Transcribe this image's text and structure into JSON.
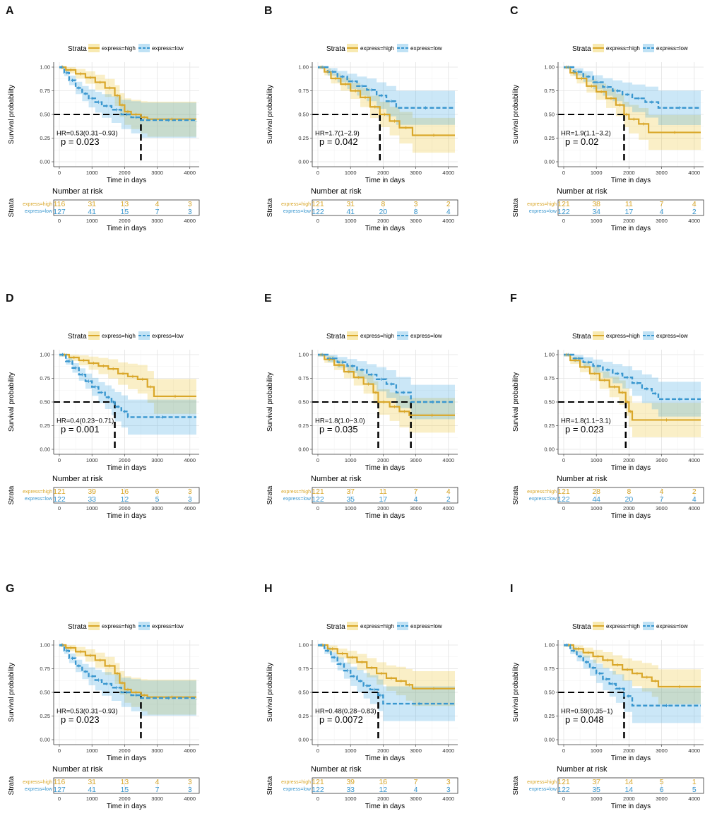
{
  "colors": {
    "high": "#E7B800",
    "low": "#2E9FDF",
    "high_line": "#D9A72A",
    "low_line": "#3A97CF"
  },
  "common": {
    "legend_title": "Strata",
    "legend_high": "express=high",
    "legend_low": "express=low",
    "ylabel": "Survival probability",
    "xlabel": "Time in days",
    "risk_title": "Number at risk",
    "risk_ylabel": "Strata",
    "risk_label_high": "express=high",
    "risk_label_low": "express=low",
    "y_ticks": [
      "0.00",
      "0.25",
      "0.50",
      "0.75",
      "1.00"
    ],
    "x_ticks": [
      "0",
      "1000",
      "2000",
      "3000",
      "4000"
    ]
  },
  "chart_data": [
    {
      "type": "line",
      "panel": "A",
      "xlim": [
        0,
        4200
      ],
      "ylim": [
        0,
        1
      ],
      "hr": "HR=0.53(0.31−0.93)",
      "p": "p = 0.023",
      "median_lines": [
        2500
      ],
      "high": {
        "t": [
          0,
          200,
          500,
          800,
          1100,
          1400,
          1700,
          1850,
          2000,
          2200,
          2500,
          2700,
          4200
        ],
        "s": [
          1,
          0.97,
          0.93,
          0.89,
          0.84,
          0.78,
          0.7,
          0.6,
          0.53,
          0.5,
          0.47,
          0.45,
          0.45
        ]
      },
      "low": {
        "t": [
          0,
          150,
          300,
          500,
          700,
          900,
          1100,
          1300,
          1600,
          1900,
          2200,
          2500,
          4200
        ],
        "s": [
          1,
          0.94,
          0.86,
          0.78,
          0.72,
          0.67,
          0.63,
          0.59,
          0.55,
          0.5,
          0.47,
          0.44,
          0.43
        ]
      },
      "risk_high": [
        "116",
        "31",
        "13",
        "4",
        "3"
      ],
      "risk_low": [
        "127",
        "41",
        "15",
        "7",
        "3"
      ]
    },
    {
      "type": "line",
      "panel": "B",
      "xlim": [
        0,
        4200
      ],
      "ylim": [
        0,
        1
      ],
      "hr": "HR=1.7(1−2.9)",
      "p": "p = 0.042",
      "median_lines": [
        1900
      ],
      "high": {
        "t": [
          0,
          200,
          400,
          700,
          1000,
          1300,
          1600,
          1900,
          2200,
          2500,
          2900,
          4200
        ],
        "s": [
          1,
          0.95,
          0.88,
          0.82,
          0.75,
          0.68,
          0.58,
          0.5,
          0.43,
          0.36,
          0.28,
          0.28
        ]
      },
      "low": {
        "t": [
          0,
          300,
          600,
          900,
          1200,
          1500,
          1800,
          2100,
          2400,
          4200
        ],
        "s": [
          1,
          0.95,
          0.9,
          0.85,
          0.8,
          0.76,
          0.7,
          0.64,
          0.57,
          0.57
        ]
      },
      "risk_high": [
        "121",
        "31",
        "8",
        "3",
        "2"
      ],
      "risk_low": [
        "122",
        "41",
        "20",
        "8",
        "4"
      ]
    },
    {
      "type": "line",
      "panel": "C",
      "xlim": [
        0,
        4200
      ],
      "ylim": [
        0,
        1
      ],
      "hr": "HR=1.9(1.1−3.2)",
      "p": "p = 0.02",
      "median_lines": [
        1850
      ],
      "high": {
        "t": [
          0,
          200,
          400,
          700,
          1000,
          1300,
          1600,
          1850,
          2000,
          2300,
          2600,
          4200
        ],
        "s": [
          1,
          0.94,
          0.88,
          0.8,
          0.74,
          0.67,
          0.6,
          0.5,
          0.45,
          0.4,
          0.31,
          0.31
        ]
      },
      "low": {
        "t": [
          0,
          300,
          600,
          900,
          1200,
          1500,
          1800,
          2100,
          2500,
          2900,
          4200
        ],
        "s": [
          1,
          0.95,
          0.9,
          0.84,
          0.79,
          0.75,
          0.71,
          0.67,
          0.63,
          0.57,
          0.57
        ]
      },
      "risk_high": [
        "121",
        "38",
        "11",
        "7",
        "4"
      ],
      "risk_low": [
        "122",
        "34",
        "17",
        "4",
        "2"
      ]
    },
    {
      "type": "line",
      "panel": "D",
      "xlim": [
        0,
        4200
      ],
      "ylim": [
        0,
        1
      ],
      "hr": "HR=0.4(0.23−0.71)",
      "p": "p = 0.001",
      "median_lines": [
        1700
      ],
      "high": {
        "t": [
          0,
          300,
          600,
          900,
          1200,
          1500,
          1800,
          2100,
          2400,
          2700,
          2900,
          4200
        ],
        "s": [
          1,
          0.97,
          0.94,
          0.91,
          0.88,
          0.85,
          0.8,
          0.77,
          0.74,
          0.66,
          0.56,
          0.56
        ]
      },
      "low": {
        "t": [
          0,
          200,
          400,
          600,
          800,
          1000,
          1200,
          1400,
          1600,
          1700,
          1900,
          2100,
          4200
        ],
        "s": [
          1,
          0.93,
          0.86,
          0.79,
          0.72,
          0.66,
          0.6,
          0.55,
          0.5,
          0.45,
          0.4,
          0.34,
          0.34
        ]
      },
      "risk_high": [
        "121",
        "39",
        "16",
        "6",
        "3"
      ],
      "risk_low": [
        "122",
        "33",
        "12",
        "5",
        "3"
      ]
    },
    {
      "type": "line",
      "panel": "E",
      "xlim": [
        0,
        4200
      ],
      "ylim": [
        0,
        1
      ],
      "hr": "HR=1.8(1.0−3.0)",
      "p": "p = 0.035",
      "median_lines": [
        1850,
        2850
      ],
      "high": {
        "t": [
          0,
          200,
          500,
          800,
          1100,
          1400,
          1700,
          1850,
          2200,
          2500,
          2800,
          4200
        ],
        "s": [
          1,
          0.95,
          0.89,
          0.82,
          0.76,
          0.69,
          0.6,
          0.5,
          0.45,
          0.4,
          0.36,
          0.36
        ]
      },
      "low": {
        "t": [
          0,
          300,
          600,
          900,
          1200,
          1500,
          1800,
          2100,
          2400,
          2850,
          4200
        ],
        "s": [
          1,
          0.96,
          0.92,
          0.88,
          0.84,
          0.79,
          0.74,
          0.69,
          0.6,
          0.5,
          0.5
        ]
      },
      "risk_high": [
        "121",
        "37",
        "11",
        "7",
        "4"
      ],
      "risk_low": [
        "122",
        "35",
        "17",
        "4",
        "2"
      ]
    },
    {
      "type": "line",
      "panel": "F",
      "xlim": [
        0,
        4200
      ],
      "ylim": [
        0,
        1
      ],
      "hr": "HR=1.8(1.1−3.1)",
      "p": "p = 0.023",
      "median_lines": [
        1900
      ],
      "high": {
        "t": [
          0,
          200,
          500,
          800,
          1100,
          1400,
          1700,
          1900,
          2000,
          2100,
          4200
        ],
        "s": [
          1,
          0.94,
          0.87,
          0.8,
          0.73,
          0.66,
          0.6,
          0.5,
          0.4,
          0.31,
          0.31
        ]
      },
      "low": {
        "t": [
          0,
          300,
          600,
          900,
          1200,
          1500,
          1800,
          2100,
          2400,
          2700,
          2900,
          4200
        ],
        "s": [
          1,
          0.96,
          0.92,
          0.88,
          0.84,
          0.8,
          0.76,
          0.7,
          0.64,
          0.59,
          0.53,
          0.53
        ]
      },
      "risk_high": [
        "121",
        "28",
        "8",
        "4",
        "2"
      ],
      "risk_low": [
        "122",
        "44",
        "20",
        "7",
        "4"
      ]
    },
    {
      "type": "line",
      "panel": "G",
      "xlim": [
        0,
        4200
      ],
      "ylim": [
        0,
        1
      ],
      "hr": "HR=0.53(0.31−0.93)",
      "p": "p = 0.023",
      "median_lines": [
        2500
      ],
      "high": {
        "t": [
          0,
          200,
          500,
          800,
          1100,
          1400,
          1700,
          1850,
          2000,
          2200,
          2500,
          2700,
          4200
        ],
        "s": [
          1,
          0.97,
          0.93,
          0.89,
          0.84,
          0.78,
          0.7,
          0.6,
          0.53,
          0.5,
          0.47,
          0.45,
          0.45
        ]
      },
      "low": {
        "t": [
          0,
          150,
          300,
          500,
          700,
          900,
          1100,
          1300,
          1600,
          1900,
          2200,
          2500,
          4200
        ],
        "s": [
          1,
          0.94,
          0.86,
          0.78,
          0.72,
          0.67,
          0.63,
          0.59,
          0.55,
          0.5,
          0.47,
          0.44,
          0.43
        ]
      },
      "risk_high": [
        "116",
        "31",
        "13",
        "4",
        "3"
      ],
      "risk_low": [
        "127",
        "41",
        "15",
        "7",
        "3"
      ]
    },
    {
      "type": "line",
      "panel": "H",
      "xlim": [
        0,
        4200
      ],
      "ylim": [
        0,
        1
      ],
      "hr": "HR=0.48(0.28−0.83)",
      "p": "p = 0.0072",
      "median_lines": [
        1850
      ],
      "high": {
        "t": [
          0,
          300,
          600,
          900,
          1200,
          1500,
          1800,
          2100,
          2400,
          2700,
          2900,
          4200
        ],
        "s": [
          1,
          0.96,
          0.91,
          0.87,
          0.82,
          0.76,
          0.7,
          0.65,
          0.62,
          0.58,
          0.54,
          0.54
        ]
      },
      "low": {
        "t": [
          0,
          200,
          400,
          600,
          800,
          1000,
          1200,
          1400,
          1600,
          1850,
          2000,
          4200
        ],
        "s": [
          1,
          0.94,
          0.87,
          0.8,
          0.73,
          0.67,
          0.62,
          0.57,
          0.53,
          0.47,
          0.38,
          0.38
        ]
      },
      "risk_high": [
        "121",
        "39",
        "16",
        "7",
        "3"
      ],
      "risk_low": [
        "122",
        "33",
        "12",
        "4",
        "3"
      ]
    },
    {
      "type": "line",
      "panel": "I",
      "xlim": [
        0,
        4200
      ],
      "ylim": [
        0,
        1
      ],
      "hr": "HR=0.59(0.35−1)",
      "p": "p = 0.048",
      "median_lines": [
        1850
      ],
      "high": {
        "t": [
          0,
          300,
          600,
          900,
          1200,
          1500,
          1800,
          2100,
          2400,
          2700,
          2900,
          4200
        ],
        "s": [
          1,
          0.96,
          0.92,
          0.88,
          0.84,
          0.79,
          0.74,
          0.7,
          0.66,
          0.62,
          0.56,
          0.56
        ]
      },
      "low": {
        "t": [
          0,
          200,
          400,
          600,
          800,
          1000,
          1200,
          1400,
          1600,
          1850,
          2100,
          4200
        ],
        "s": [
          1,
          0.94,
          0.88,
          0.82,
          0.76,
          0.7,
          0.64,
          0.59,
          0.54,
          0.46,
          0.36,
          0.36
        ]
      },
      "risk_high": [
        "121",
        "37",
        "14",
        "5",
        "1"
      ],
      "risk_low": [
        "122",
        "35",
        "14",
        "6",
        "5"
      ]
    }
  ]
}
